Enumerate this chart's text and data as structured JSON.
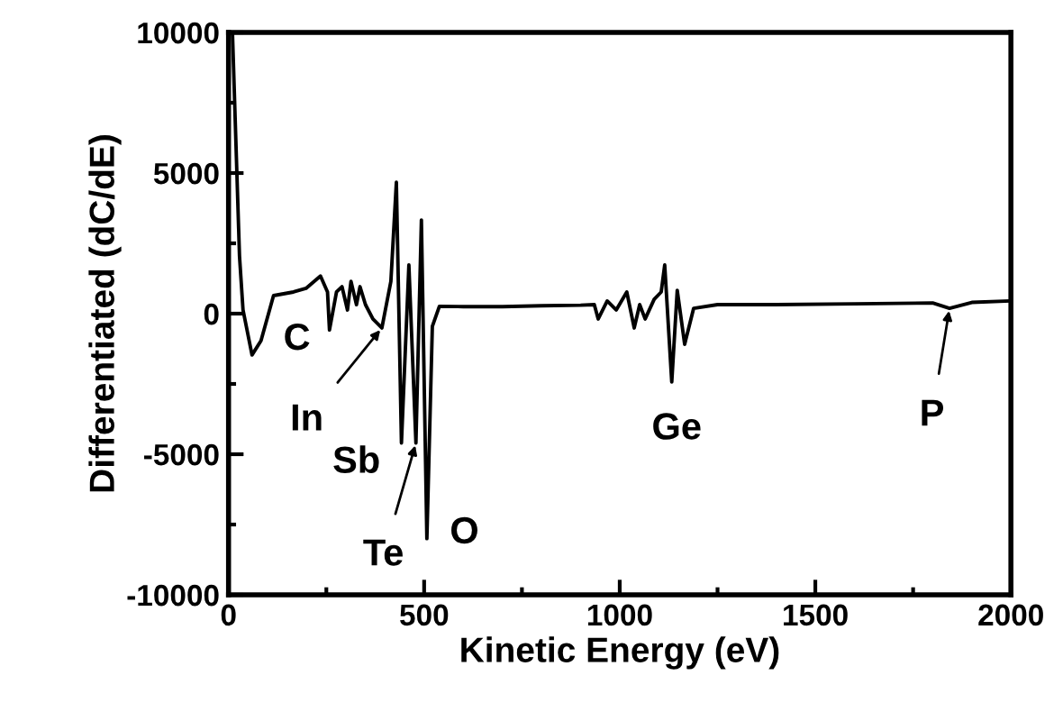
{
  "chart_data": {
    "type": "line",
    "xlabel": "Kinetic Energy (eV)",
    "ylabel": "Differentiated (dC/dE)",
    "x": [
      10,
      28,
      37,
      60,
      83,
      115,
      166,
      198,
      235,
      253,
      258,
      276,
      290,
      304,
      313,
      327,
      336,
      350,
      369,
      392,
      415,
      429,
      442,
      461,
      479,
      493,
      507,
      521,
      539,
      600,
      700,
      800,
      900,
      935,
      945,
      968,
      991,
      1018,
      1037,
      1051,
      1065,
      1088,
      1106,
      1115,
      1133,
      1147,
      1166,
      1189,
      1250,
      1400,
      1600,
      1800,
      1843,
      1900,
      1995
    ],
    "series": [
      {
        "color": "#000000",
        "values": [
          10000,
          2050,
          130,
          -1470,
          -960,
          640,
          770,
          900,
          1340,
          770,
          -580,
          770,
          960,
          130,
          1150,
          320,
          960,
          320,
          -190,
          -510,
          1150,
          4670,
          -4600,
          1730,
          -4600,
          3330,
          -8000,
          -450,
          260,
          250,
          250,
          280,
          300,
          320,
          -190,
          450,
          130,
          770,
          -510,
          320,
          -190,
          510,
          770,
          1730,
          -2430,
          830,
          -1090,
          190,
          320,
          320,
          350,
          380,
          190,
          400,
          450
        ]
      }
    ],
    "annotations": [
      {
        "text": "C",
        "x": 258,
        "y": -580
      },
      {
        "text": "In",
        "x": 392,
        "y": -510
      },
      {
        "text": "Sb",
        "x": 442,
        "y": -4600
      },
      {
        "text": "Te",
        "x": 479,
        "y": -4600
      },
      {
        "text": "O",
        "x": 507,
        "y": -8000
      },
      {
        "text": "Ge",
        "x": 1133,
        "y": -2430
      },
      {
        "text": "P",
        "x": 1843,
        "y": 190
      }
    ],
    "xlim": [
      0,
      2000
    ],
    "xticks": [
      0,
      500,
      1000,
      1500,
      2000
    ],
    "ylim": [
      -10000,
      10000
    ],
    "yticks": [
      -10000,
      -5000,
      0,
      5000,
      10000
    ],
    "grid": false,
    "marker": "none",
    "line_style": "solid"
  }
}
